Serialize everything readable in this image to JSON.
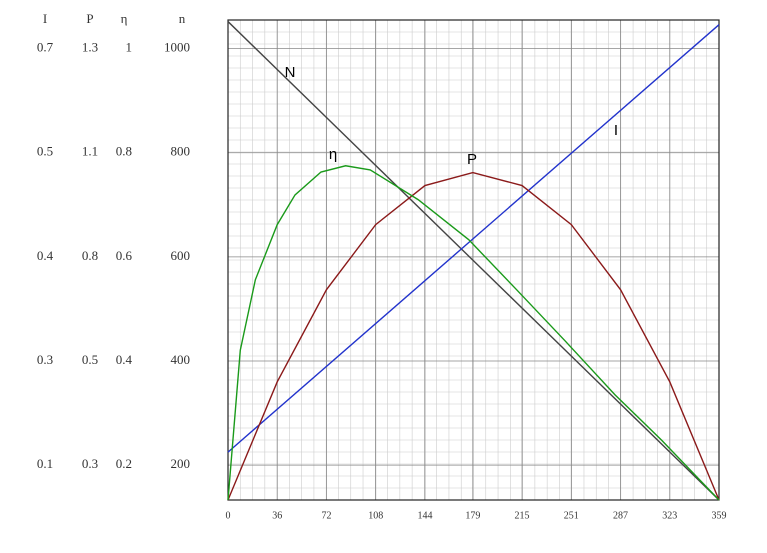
{
  "chart_data": {
    "type": "line",
    "xlim": [
      0,
      359
    ],
    "xticks": [
      0,
      36,
      72,
      108,
      144,
      179,
      215,
      251,
      287,
      323,
      359
    ],
    "ylim": [
      133,
      1055
    ],
    "yticks": [
      200,
      400,
      600,
      800,
      1000
    ],
    "y_axes": [
      {
        "name": "I",
        "labels": [
          0.1,
          0.3,
          0.4,
          0.5,
          0.7
        ]
      },
      {
        "name": "P",
        "labels": [
          0.3,
          0.5,
          0.8,
          1.1,
          1.3
        ]
      },
      {
        "name": "η",
        "labels": [
          0.2,
          0.4,
          0.6,
          0.8,
          1
        ]
      },
      {
        "name": "n",
        "labels": [
          200,
          400,
          600,
          800,
          1000
        ]
      }
    ],
    "grid": true,
    "series": [
      {
        "name": "N",
        "color": "#444444",
        "x": [
          0,
          359
        ],
        "values": [
          1052,
          133
        ]
      },
      {
        "name": "I",
        "color": "#2233cc",
        "x": [
          0,
          359
        ],
        "values": [
          225,
          1046
        ]
      },
      {
        "name": "P",
        "color": "#8b1a1a",
        "x": [
          0,
          36,
          72,
          108,
          144,
          179,
          215,
          251,
          287,
          323,
          359
        ],
        "values": [
          133,
          360,
          537,
          662,
          737,
          762,
          737,
          662,
          537,
          360,
          133
        ]
      },
      {
        "name": "η",
        "color": "#1a9a1a",
        "x": [
          0,
          9,
          20,
          36,
          49,
          68,
          86,
          104,
          139,
          176,
          211,
          246,
          283,
          317,
          359
        ],
        "values": [
          133,
          421,
          556,
          662,
          719,
          763,
          775,
          767,
          710,
          633,
          537,
          440,
          335,
          248,
          133
        ]
      }
    ]
  }
}
